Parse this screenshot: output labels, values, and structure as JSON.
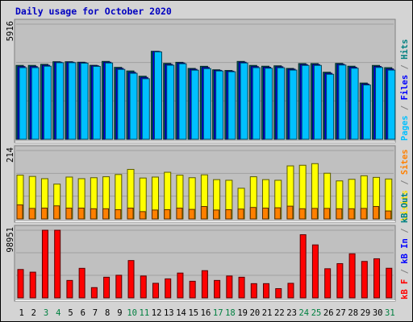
{
  "chart_data": {
    "type": "bar",
    "title": "Daily usage for October 2020",
    "categories": [
      "1",
      "2",
      "3",
      "4",
      "5",
      "6",
      "7",
      "8",
      "9",
      "10",
      "11",
      "12",
      "13",
      "14",
      "15",
      "16",
      "17",
      "18",
      "19",
      "20",
      "21",
      "22",
      "23",
      "24",
      "25",
      "26",
      "27",
      "28",
      "29",
      "30",
      "31"
    ],
    "weekend_days": [
      "3",
      "4",
      "10",
      "11",
      "17",
      "18",
      "24",
      "25",
      "31"
    ],
    "panels": [
      {
        "name": "top",
        "ymax_label": "5916",
        "ymax": 5916,
        "right_label": [
          {
            "text": "Pages",
            "color": "#00c0ff"
          },
          {
            "text": " / ",
            "color": "#808080"
          },
          {
            "text": "Files",
            "color": "#0000ff"
          },
          {
            "text": " / ",
            "color": "#808080"
          },
          {
            "text": "Hits",
            "color": "#008080"
          }
        ],
        "series": [
          {
            "name": "Hits",
            "color": "#006e64",
            "values": [
              3795,
              3795,
              3850,
              3985,
              3985,
              3960,
              3800,
              4000,
              3695,
              3510,
              3240,
              4520,
              3900,
              3955,
              3640,
              3750,
              3570,
              3535,
              4000,
              3795,
              3755,
              3775,
              3640,
              3890,
              3890,
              3445,
              3900,
              3755,
              2890,
              3795,
              3680
            ]
          },
          {
            "name": "Files",
            "color": "#0000ff",
            "values": [
              3735,
              3735,
              3800,
              3960,
              3960,
              3935,
              3775,
              3960,
              3640,
              3440,
              3175,
              4510,
              3850,
              3920,
              3595,
              3690,
              3540,
              3500,
              3960,
              3735,
              3700,
              3725,
              3600,
              3840,
              3840,
              3390,
              3855,
              3700,
              2840,
              3740,
              3615
            ]
          },
          {
            "name": "Pages",
            "color": "#00c0ff",
            "values": [
              3680,
              3680,
              3755,
              3935,
              3935,
              3910,
              3745,
              3920,
              3590,
              3390,
              3110,
              4490,
              3805,
              3880,
              3550,
              3630,
              3510,
              3470,
              3920,
              3680,
              3650,
              3675,
              3555,
              3795,
              3795,
              3340,
              3815,
              3650,
              2790,
              3690,
              3555
            ]
          }
        ]
      },
      {
        "name": "middle",
        "ymax_label": "214",
        "ymax": 214,
        "right_label": [
          {
            "text": "Visits",
            "color": "#ffe000"
          },
          {
            "text": " / ",
            "color": "#808080"
          },
          {
            "text": "Sites",
            "color": "#ff8000"
          }
        ],
        "series": [
          {
            "name": "Visits",
            "color": "#ffff00",
            "values": [
              137,
              133,
              126,
              109,
              131,
              126,
              129,
              132,
              139,
              155,
              128,
              131,
              146,
              137,
              129,
              138,
              123,
              121,
              96,
              132,
              123,
              121,
              166,
              168,
              173,
              143,
              119,
              124,
              135,
              130,
              125
            ]
          },
          {
            "name": "Sites",
            "color": "#ff8000",
            "values": [
              44,
              33,
              34,
              41,
              34,
              34,
              32,
              32,
              29,
              34,
              23,
              28,
              29,
              34,
              30,
              39,
              28,
              29,
              31,
              36,
              34,
              35,
              40,
              32,
              33,
              33,
              32,
              32,
              33,
              39,
              25
            ]
          }
        ]
      },
      {
        "name": "bottom",
        "ymax_label": "98951",
        "ymax": 98951,
        "right_label": [
          {
            "text": "kB F",
            "color": "#ff0000"
          },
          {
            "text": " / ",
            "color": "#808080"
          },
          {
            "text": "kB In",
            "color": "#0000ff"
          },
          {
            "text": " / ",
            "color": "#808080"
          },
          {
            "text": "kB Out",
            "color": "#008080"
          }
        ],
        "series": [
          {
            "name": "kB F",
            "color": "#ff0000",
            "values": [
              41500,
              37600,
              98951,
              98951,
              25500,
              43200,
              15000,
              30200,
              33100,
              54600,
              32000,
              21300,
              27800,
              36300,
              24300,
              39800,
              25500,
              32000,
              30200,
              20800,
              20800,
              13500,
              21300,
              92400,
              77500,
              42600,
              50100,
              64500,
              53300,
              57200,
              43300
            ]
          }
        ]
      }
    ]
  }
}
